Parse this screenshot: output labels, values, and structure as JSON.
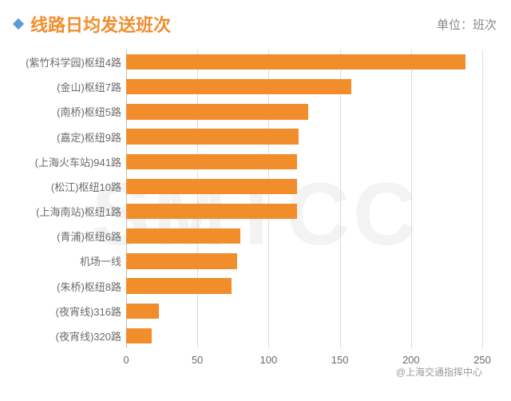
{
  "header": {
    "title": "线路日均发送班次",
    "unit": "单位：班次",
    "title_color": "#f28d2c",
    "title_fontsize": 22,
    "unit_color": "#888888",
    "unit_fontsize": 15,
    "diamond_color": "#5b9bd5"
  },
  "watermark": {
    "text": "SMTCC",
    "color": "#f3f3f3",
    "fontsize": 110
  },
  "chart": {
    "type": "bar-horizontal",
    "bar_color": "#f28d2c",
    "background_color": "#ffffff",
    "grid_color": "#dddddd",
    "axis_color": "#bfbfbf",
    "label_color": "#6b6b6b",
    "label_fontsize": 13,
    "tick_fontsize": 13,
    "xlim": [
      0,
      250
    ],
    "xtick_step": 50,
    "xticks": [
      0,
      50,
      100,
      150,
      200,
      250
    ],
    "bar_width": 0.62,
    "categories": [
      "(紫竹科学园)枢纽4路",
      "(金山)枢纽7路",
      "(南桥)枢纽5路",
      "(嘉定)枢纽9路",
      "(上海火车站)941路",
      "(松江)枢纽10路",
      "(上海南站)枢纽1路",
      "(青浦)枢纽6路",
      "机场一线",
      "(朱桥)枢纽8路",
      "(夜宵线)316路",
      "(夜宵线)320路"
    ],
    "values": [
      238,
      158,
      128,
      121,
      120,
      120,
      120,
      80,
      78,
      74,
      23,
      18
    ]
  },
  "credit": {
    "text": "@上海交通指挥中心",
    "color": "#9a9a9a",
    "fontsize": 12
  }
}
